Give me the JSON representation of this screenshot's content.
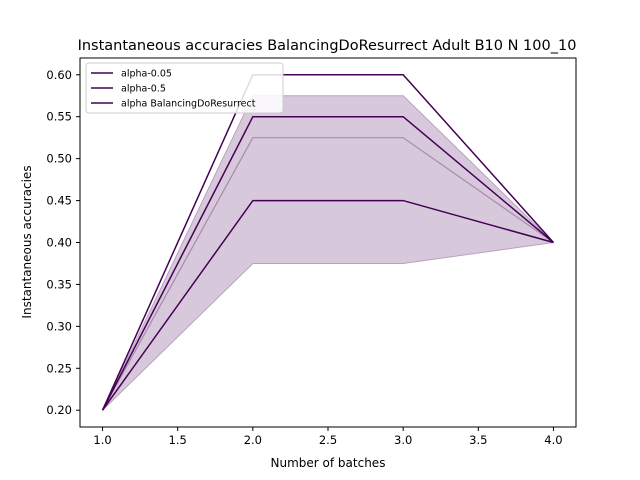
{
  "chart_data": {
    "type": "line",
    "title": "Instantaneous accuracies BalancingDoResurrect Adult B10 N 100_10",
    "xlabel": "Number of batches",
    "ylabel": "Instantaneous accuracies",
    "xlim": [
      0.85,
      4.15
    ],
    "ylim": [
      0.18,
      0.62
    ],
    "xticks": [
      1.0,
      1.5,
      2.0,
      2.5,
      3.0,
      3.5,
      4.0
    ],
    "xtick_labels": [
      "1.0",
      "1.5",
      "2.0",
      "2.5",
      "3.0",
      "3.5",
      "4.0"
    ],
    "yticks": [
      0.2,
      0.25,
      0.3,
      0.35,
      0.4,
      0.45,
      0.5,
      0.55,
      0.6
    ],
    "ytick_labels": [
      "0.20",
      "0.25",
      "0.30",
      "0.35",
      "0.40",
      "0.45",
      "0.50",
      "0.55",
      "0.60"
    ],
    "grid": false,
    "legend_position": "top-left",
    "x": [
      1,
      2,
      3,
      4
    ],
    "series": [
      {
        "name": "alpha-0.05",
        "values": [
          0.2,
          0.6,
          0.6,
          0.4
        ],
        "color": "#440154"
      },
      {
        "name": "alpha-0.5",
        "values": [
          0.2,
          0.55,
          0.55,
          0.4
        ],
        "color": "#440154"
      },
      {
        "name": "alpha BalancingDoResurrect",
        "values": [
          0.2,
          0.45,
          0.45,
          0.4
        ],
        "color": "#440154"
      }
    ],
    "band": {
      "mean": [
        0.2,
        0.525,
        0.525,
        0.4
      ],
      "lower": [
        0.2,
        0.375,
        0.375,
        0.4
      ],
      "upper": [
        0.2,
        0.575,
        0.575,
        0.4
      ],
      "fill_color": "#d8c8dc",
      "edge_color": "#b9a2bf",
      "mean_color": "#a78aab"
    }
  }
}
